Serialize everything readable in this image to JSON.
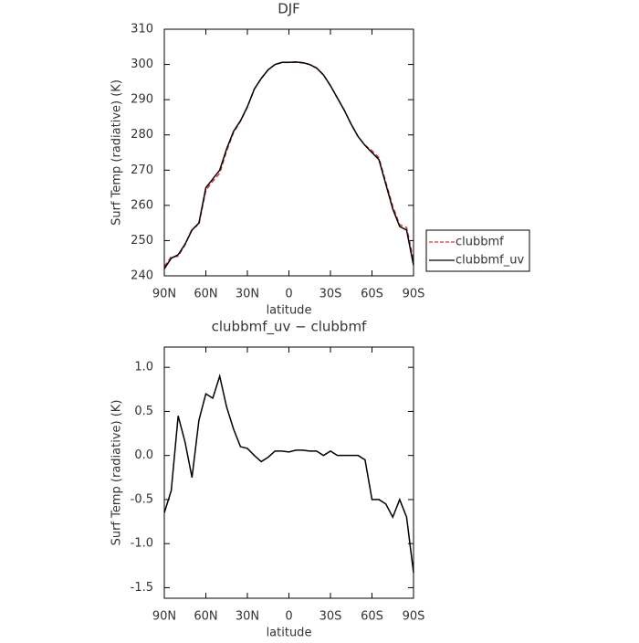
{
  "chart_data": [
    {
      "type": "line",
      "title": "DJF",
      "xlabel": "latitude",
      "ylabel": "Surf Temp (radiative) (K)",
      "x": [
        90,
        85,
        80,
        75,
        70,
        65,
        60,
        55,
        50,
        45,
        40,
        35,
        30,
        25,
        20,
        15,
        10,
        5,
        0,
        -5,
        -10,
        -15,
        -20,
        -25,
        -30,
        -35,
        -40,
        -45,
        -50,
        -55,
        -60,
        -65,
        -70,
        -75,
        -80,
        -85,
        -90
      ],
      "xlim": [
        90,
        -90
      ],
      "xticks": [
        {
          "value": 90,
          "label": "90N"
        },
        {
          "value": 60,
          "label": "60N"
        },
        {
          "value": 30,
          "label": "30N"
        },
        0,
        {
          "value": -30,
          "label": "30S"
        },
        {
          "value": -60,
          "label": "60S"
        },
        {
          "value": -90,
          "label": "90S"
        }
      ],
      "ylim": [
        240,
        310
      ],
      "yticks": [
        240,
        250,
        260,
        270,
        280,
        290,
        300,
        310
      ],
      "legend": "right",
      "series": [
        {
          "name": "clubbmf",
          "color": "#e03030",
          "linestyle": "dashed",
          "values": [
            242.65,
            245.4,
            245.55,
            248.85,
            253.25,
            254.6,
            264.3,
            266.85,
            269.1,
            275.45,
            280.7,
            283.9,
            287.92,
            293,
            296.07,
            298.52,
            299.95,
            300.55,
            300.56,
            300.64,
            300.44,
            299.95,
            298.95,
            297,
            293.95,
            290.5,
            287,
            283,
            279.5,
            277.05,
            275.5,
            273.5,
            266.55,
            259.7,
            254.5,
            253.7,
            244.33
          ]
        },
        {
          "name": "clubbmf_uv",
          "color": "#000000",
          "linestyle": "solid",
          "values": [
            242,
            245,
            246,
            249,
            253,
            255,
            265,
            267.5,
            270,
            276,
            281,
            284,
            288,
            293,
            296,
            298.5,
            300,
            300.6,
            300.6,
            300.7,
            300.5,
            300,
            299,
            297,
            294,
            290.5,
            287,
            283,
            279.5,
            277,
            275,
            273,
            266,
            259,
            254,
            253,
            243
          ]
        }
      ]
    },
    {
      "type": "line",
      "title": "clubbmf_uv − clubbmf",
      "xlabel": "latitude",
      "ylabel": "Surf Temp (radiative) (K)",
      "x": [
        90,
        85,
        80,
        75,
        70,
        65,
        60,
        55,
        50,
        45,
        40,
        35,
        30,
        25,
        20,
        15,
        10,
        5,
        0,
        -5,
        -10,
        -15,
        -20,
        -25,
        -30,
        -35,
        -40,
        -45,
        -50,
        -55,
        -60,
        -65,
        -70,
        -75,
        -80,
        -85,
        -90
      ],
      "xlim": [
        90,
        -90
      ],
      "xticks": [
        {
          "value": 90,
          "label": "90N"
        },
        {
          "value": 60,
          "label": "60N"
        },
        {
          "value": 30,
          "label": "30N"
        },
        0,
        {
          "value": -30,
          "label": "30S"
        },
        {
          "value": -60,
          "label": "60S"
        },
        {
          "value": -90,
          "label": "90S"
        }
      ],
      "ylim": [
        -1.62,
        1.23
      ],
      "yticks": [
        -1.5,
        {
          "value": -1,
          "label": "-1.0"
        },
        -0.5,
        {
          "value": 0,
          "label": "0.0"
        },
        0.5,
        {
          "value": 1,
          "label": "1.0"
        }
      ],
      "color": "#000000",
      "values": [
        -0.65,
        -0.4,
        0.45,
        0.15,
        -0.25,
        0.4,
        0.7,
        0.65,
        0.9,
        0.55,
        0.3,
        0.1,
        0.08,
        0,
        -0.07,
        -0.02,
        0.05,
        0.05,
        0.04,
        0.06,
        0.06,
        0.05,
        0.05,
        0,
        0.05,
        0,
        0,
        0,
        0,
        -0.05,
        -0.5,
        -0.5,
        -0.55,
        -0.7,
        -0.5,
        -0.7,
        -1.33
      ]
    }
  ]
}
